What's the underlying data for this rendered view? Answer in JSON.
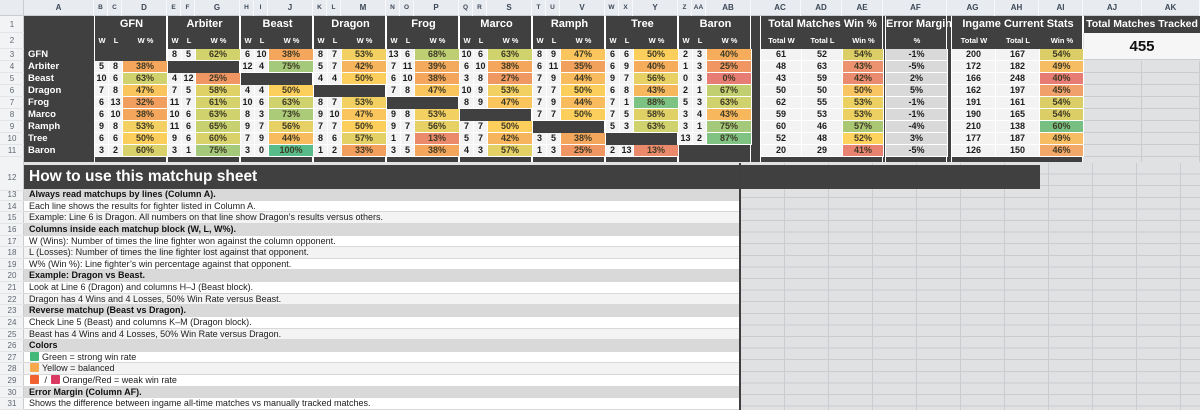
{
  "sheet": {
    "column_letters": [
      "A",
      "B",
      "C",
      "D",
      "E",
      "F",
      "G",
      "H",
      "I",
      "J",
      "K",
      "L",
      "M",
      "N",
      "O",
      "P",
      "Q",
      "R",
      "S",
      "T",
      "U",
      "V",
      "W",
      "X",
      "Y",
      "Z",
      "AA",
      "AB",
      "AC",
      "AD",
      "AE",
      "AF",
      "AG",
      "AH",
      "AI",
      "AJ",
      "AK"
    ],
    "row_count": 31
  },
  "matchup": {
    "fighters": [
      "GFN",
      "Arbiter",
      "Beast",
      "Dragon",
      "Frog",
      "Marco",
      "Ramph",
      "Tree",
      "Baron"
    ],
    "sub_headers": [
      "W",
      "L",
      "W %"
    ],
    "rows": [
      {
        "name": "GFN",
        "cells": [
          null,
          [
            8,
            5,
            "62%"
          ],
          [
            6,
            10,
            "38%"
          ],
          [
            8,
            7,
            "53%"
          ],
          [
            13,
            6,
            "68%"
          ],
          [
            10,
            6,
            "63%"
          ],
          [
            8,
            9,
            "47%"
          ],
          [
            6,
            6,
            "50%"
          ],
          [
            2,
            3,
            "40%"
          ]
        ]
      },
      {
        "name": "Arbiter",
        "cells": [
          [
            5,
            8,
            "38%"
          ],
          null,
          [
            12,
            4,
            "75%"
          ],
          [
            5,
            7,
            "42%"
          ],
          [
            7,
            11,
            "39%"
          ],
          [
            6,
            10,
            "38%"
          ],
          [
            6,
            11,
            "35%"
          ],
          [
            6,
            9,
            "40%"
          ],
          [
            1,
            3,
            "25%"
          ]
        ]
      },
      {
        "name": "Beast",
        "cells": [
          [
            10,
            6,
            "63%"
          ],
          [
            4,
            12,
            "25%"
          ],
          null,
          [
            4,
            4,
            "50%"
          ],
          [
            6,
            10,
            "38%"
          ],
          [
            3,
            8,
            "27%"
          ],
          [
            7,
            9,
            "44%"
          ],
          [
            9,
            7,
            "56%"
          ],
          [
            0,
            3,
            "0%"
          ]
        ]
      },
      {
        "name": "Dragon",
        "cells": [
          [
            7,
            8,
            "47%"
          ],
          [
            7,
            5,
            "58%"
          ],
          [
            4,
            4,
            "50%"
          ],
          null,
          [
            7,
            8,
            "47%"
          ],
          [
            10,
            9,
            "53%"
          ],
          [
            7,
            7,
            "50%"
          ],
          [
            6,
            8,
            "43%"
          ],
          [
            2,
            1,
            "67%"
          ]
        ]
      },
      {
        "name": "Frog",
        "cells": [
          [
            6,
            13,
            "32%"
          ],
          [
            11,
            7,
            "61%"
          ],
          [
            10,
            6,
            "63%"
          ],
          [
            8,
            7,
            "53%"
          ],
          null,
          [
            8,
            9,
            "47%"
          ],
          [
            7,
            9,
            "44%"
          ],
          [
            7,
            1,
            "88%"
          ],
          [
            5,
            3,
            "63%"
          ]
        ]
      },
      {
        "name": "Marco",
        "cells": [
          [
            6,
            10,
            "38%"
          ],
          [
            10,
            6,
            "63%"
          ],
          [
            8,
            3,
            "73%"
          ],
          [
            9,
            10,
            "47%"
          ],
          [
            9,
            8,
            "53%"
          ],
          null,
          [
            7,
            7,
            "50%"
          ],
          [
            7,
            5,
            "58%"
          ],
          [
            3,
            4,
            "43%"
          ]
        ]
      },
      {
        "name": "Ramph",
        "cells": [
          [
            9,
            8,
            "53%"
          ],
          [
            11,
            6,
            "65%"
          ],
          [
            9,
            7,
            "56%"
          ],
          [
            7,
            7,
            "50%"
          ],
          [
            9,
            7,
            "56%"
          ],
          [
            7,
            7,
            "50%"
          ],
          null,
          [
            5,
            3,
            "63%"
          ],
          [
            3,
            1,
            "75%"
          ]
        ]
      },
      {
        "name": "Tree",
        "cells": [
          [
            6,
            6,
            "50%"
          ],
          [
            9,
            6,
            "60%"
          ],
          [
            7,
            9,
            "44%"
          ],
          [
            8,
            6,
            "57%"
          ],
          [
            1,
            7,
            "13%"
          ],
          [
            5,
            7,
            "42%"
          ],
          [
            3,
            5,
            "38%"
          ],
          null,
          [
            13,
            2,
            "87%"
          ]
        ]
      },
      {
        "name": "Baron",
        "cells": [
          [
            3,
            2,
            "60%"
          ],
          [
            3,
            1,
            "75%"
          ],
          [
            3,
            0,
            "100%"
          ],
          [
            1,
            2,
            "33%"
          ],
          [
            3,
            5,
            "38%"
          ],
          [
            4,
            3,
            "57%"
          ],
          [
            1,
            3,
            "25%"
          ],
          [
            2,
            13,
            "13%"
          ],
          null
        ]
      }
    ]
  },
  "totals": {
    "header": "Total Matches Win %",
    "cols": [
      "Total W",
      "Total L",
      "Win %"
    ],
    "rows": [
      [
        61,
        52,
        "54%"
      ],
      [
        48,
        63,
        "43%"
      ],
      [
        43,
        59,
        "42%"
      ],
      [
        50,
        50,
        "50%"
      ],
      [
        62,
        55,
        "53%"
      ],
      [
        59,
        53,
        "53%"
      ],
      [
        60,
        46,
        "57%"
      ],
      [
        52,
        48,
        "52%"
      ],
      [
        20,
        29,
        "41%"
      ]
    ]
  },
  "error_margin": {
    "header": "Error Margin",
    "col": "%",
    "values": [
      "-1%",
      "-5%",
      "2%",
      "5%",
      "-1%",
      "-1%",
      "-4%",
      "3%",
      "-5%"
    ]
  },
  "ingame": {
    "header": "Ingame Current Stats",
    "cols": [
      "Total W",
      "Total L",
      "Win %"
    ],
    "rows": [
      [
        200,
        167,
        "54%"
      ],
      [
        172,
        182,
        "49%"
      ],
      [
        166,
        248,
        "40%"
      ],
      [
        162,
        197,
        "45%"
      ],
      [
        191,
        161,
        "54%"
      ],
      [
        190,
        165,
        "54%"
      ],
      [
        210,
        138,
        "60%"
      ],
      [
        177,
        187,
        "49%"
      ],
      [
        126,
        150,
        "46%"
      ]
    ]
  },
  "tracked": {
    "header": "Total Matches Tracked",
    "value": "455"
  },
  "instructions": {
    "title": "How to use this matchup sheet",
    "lines": [
      {
        "bold": true,
        "text": "Always read matchups by lines (Column A)."
      },
      {
        "text": "Each line shows the results for fighter listed in Column A."
      },
      {
        "text": "Example: Line 6 is Dragon. All numbers on that line show Dragon’s results versus others."
      },
      {
        "bold": true,
        "text": "Columns inside each matchup block (W, L, W%)."
      },
      {
        "text": "W (Wins): Number of times the line fighter won against the column opponent."
      },
      {
        "text": "L (Losses): Number of times the line fighter lost against that opponent."
      },
      {
        "text": "W% (Win %): Line fighter’s win percentage against that opponent."
      },
      {
        "bold": true,
        "text": "Example: Dragon vs Beast."
      },
      {
        "text": "Look at Line 6 (Dragon) and columns H–J (Beast block)."
      },
      {
        "text": "Dragon has 4 Wins and 4 Losses, 50% Win Rate versus Beast."
      },
      {
        "bold": true,
        "text": "Reverse matchup (Beast vs Dragon)."
      },
      {
        "text": "Check Line 5 (Beast) and columns K–M (Dragon block)."
      },
      {
        "text": "Beast has 4 Wins and 4 Losses, 50% Win Rate versus Dragon."
      },
      {
        "bold": true,
        "text": "Colors"
      },
      {
        "swatches": [
          "green"
        ],
        "text": "Green = strong win rate"
      },
      {
        "swatches": [
          "yellow"
        ],
        "text": "Yellow = balanced"
      },
      {
        "swatches": [
          "orange",
          "red"
        ],
        "swatch_separator": "/",
        "text": "Orange/Red = weak win rate"
      },
      {
        "bold": true,
        "text": "Error Margin (Column AF)."
      },
      {
        "text": "Shows the difference between ingame all-time matches vs manually tracked matches."
      }
    ]
  },
  "colors": {
    "table_bg": "#404040",
    "cell_bg": "#f3f3f3",
    "error_bg": "#d9d9d9",
    "scale_matchup": [
      [
        0,
        "#e67c73"
      ],
      [
        37,
        "#f3a35c"
      ],
      [
        50,
        "#fccf5d"
      ],
      [
        63,
        "#cfd26d"
      ],
      [
        75,
        "#a5c97a"
      ],
      [
        100,
        "#57bb8a"
      ]
    ],
    "scale_stats": [
      [
        40,
        "#e67c73"
      ],
      [
        52,
        "#fdd35e"
      ],
      [
        62,
        "#57bb8a"
      ]
    ],
    "swatches": {
      "green": "#44b878",
      "yellow": "#f8a94e",
      "orange": "#f1602f",
      "red": "#da3a62"
    }
  }
}
